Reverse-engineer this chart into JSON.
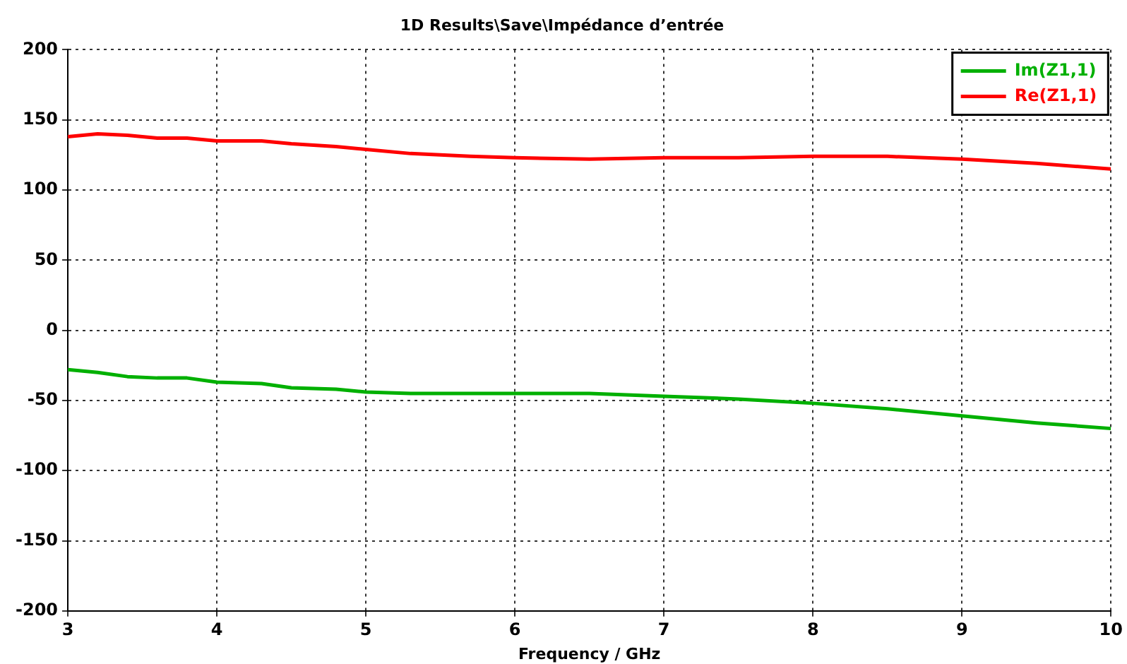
{
  "chart_data": {
    "type": "line",
    "title": "1D Results\\Save\\Impédance d’entrée",
    "xlabel": "Frequency / GHz",
    "x": [
      3,
      3.2,
      3.4,
      3.6,
      3.8,
      4,
      4.3,
      4.5,
      4.8,
      5,
      5.3,
      5.7,
      6,
      6.5,
      7,
      7.5,
      8,
      8.5,
      9,
      9.5,
      10
    ],
    "series": [
      {
        "name": "Im(Z1,1)",
        "color": "#00b000",
        "values": [
          -28,
          -30,
          -33,
          -34,
          -34,
          -37,
          -38,
          -41,
          -42,
          -44,
          -45,
          -45,
          -45,
          -45,
          -47,
          -49,
          -52,
          -56,
          -61,
          -66,
          -70
        ]
      },
      {
        "name": "Re(Z1,1)",
        "color": "#ff0000",
        "values": [
          138,
          140,
          139,
          137,
          137,
          135,
          135,
          133,
          131,
          129,
          126,
          124,
          123,
          122,
          123,
          123,
          124,
          124,
          122,
          119,
          115
        ]
      }
    ],
    "xlim": [
      3,
      10
    ],
    "xticks": [
      3,
      4,
      5,
      6,
      7,
      8,
      9,
      10
    ],
    "ylim": [
      -200,
      200
    ],
    "yticks": [
      -200,
      -150,
      -100,
      -50,
      0,
      50,
      100,
      150,
      200
    ],
    "grid": true,
    "legend": "top right",
    "marker": "none",
    "line_style": "solid"
  }
}
